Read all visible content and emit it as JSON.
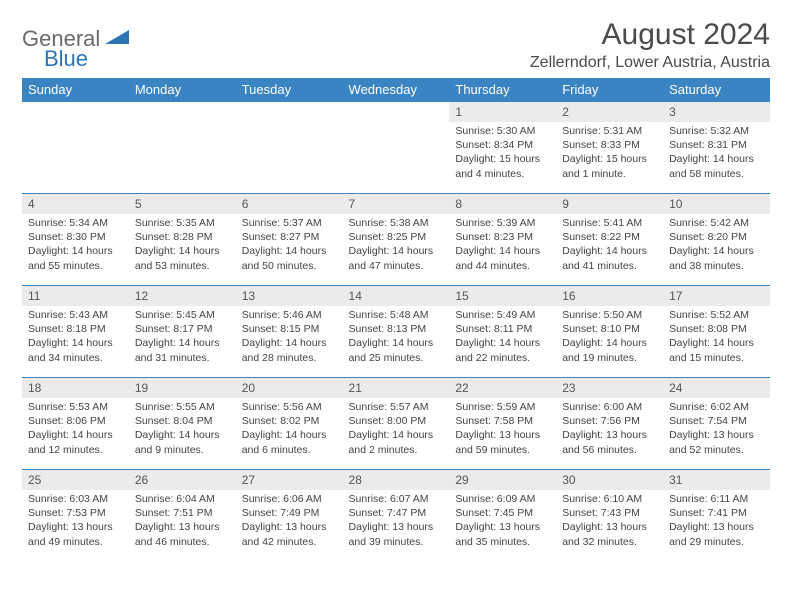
{
  "logo": {
    "general": "General",
    "blue": "Blue"
  },
  "title": "August 2024",
  "location": "Zellerndorf, Lower Austria, Austria",
  "colors": {
    "header_bg": "#3b84c4",
    "header_text": "#ffffff",
    "daynum_bg": "#ebebeb",
    "border": "#3b84c4",
    "logo_gray": "#6a6a6a",
    "logo_blue": "#2d74b5"
  },
  "weekdays": [
    "Sunday",
    "Monday",
    "Tuesday",
    "Wednesday",
    "Thursday",
    "Friday",
    "Saturday"
  ],
  "weeks": [
    [
      null,
      null,
      null,
      null,
      {
        "n": "1",
        "sunrise": "5:30 AM",
        "sunset": "8:34 PM",
        "daylight": "15 hours and 4 minutes."
      },
      {
        "n": "2",
        "sunrise": "5:31 AM",
        "sunset": "8:33 PM",
        "daylight": "15 hours and 1 minute."
      },
      {
        "n": "3",
        "sunrise": "5:32 AM",
        "sunset": "8:31 PM",
        "daylight": "14 hours and 58 minutes."
      }
    ],
    [
      {
        "n": "4",
        "sunrise": "5:34 AM",
        "sunset": "8:30 PM",
        "daylight": "14 hours and 55 minutes."
      },
      {
        "n": "5",
        "sunrise": "5:35 AM",
        "sunset": "8:28 PM",
        "daylight": "14 hours and 53 minutes."
      },
      {
        "n": "6",
        "sunrise": "5:37 AM",
        "sunset": "8:27 PM",
        "daylight": "14 hours and 50 minutes."
      },
      {
        "n": "7",
        "sunrise": "5:38 AM",
        "sunset": "8:25 PM",
        "daylight": "14 hours and 47 minutes."
      },
      {
        "n": "8",
        "sunrise": "5:39 AM",
        "sunset": "8:23 PM",
        "daylight": "14 hours and 44 minutes."
      },
      {
        "n": "9",
        "sunrise": "5:41 AM",
        "sunset": "8:22 PM",
        "daylight": "14 hours and 41 minutes."
      },
      {
        "n": "10",
        "sunrise": "5:42 AM",
        "sunset": "8:20 PM",
        "daylight": "14 hours and 38 minutes."
      }
    ],
    [
      {
        "n": "11",
        "sunrise": "5:43 AM",
        "sunset": "8:18 PM",
        "daylight": "14 hours and 34 minutes."
      },
      {
        "n": "12",
        "sunrise": "5:45 AM",
        "sunset": "8:17 PM",
        "daylight": "14 hours and 31 minutes."
      },
      {
        "n": "13",
        "sunrise": "5:46 AM",
        "sunset": "8:15 PM",
        "daylight": "14 hours and 28 minutes."
      },
      {
        "n": "14",
        "sunrise": "5:48 AM",
        "sunset": "8:13 PM",
        "daylight": "14 hours and 25 minutes."
      },
      {
        "n": "15",
        "sunrise": "5:49 AM",
        "sunset": "8:11 PM",
        "daylight": "14 hours and 22 minutes."
      },
      {
        "n": "16",
        "sunrise": "5:50 AM",
        "sunset": "8:10 PM",
        "daylight": "14 hours and 19 minutes."
      },
      {
        "n": "17",
        "sunrise": "5:52 AM",
        "sunset": "8:08 PM",
        "daylight": "14 hours and 15 minutes."
      }
    ],
    [
      {
        "n": "18",
        "sunrise": "5:53 AM",
        "sunset": "8:06 PM",
        "daylight": "14 hours and 12 minutes."
      },
      {
        "n": "19",
        "sunrise": "5:55 AM",
        "sunset": "8:04 PM",
        "daylight": "14 hours and 9 minutes."
      },
      {
        "n": "20",
        "sunrise": "5:56 AM",
        "sunset": "8:02 PM",
        "daylight": "14 hours and 6 minutes."
      },
      {
        "n": "21",
        "sunrise": "5:57 AM",
        "sunset": "8:00 PM",
        "daylight": "14 hours and 2 minutes."
      },
      {
        "n": "22",
        "sunrise": "5:59 AM",
        "sunset": "7:58 PM",
        "daylight": "13 hours and 59 minutes."
      },
      {
        "n": "23",
        "sunrise": "6:00 AM",
        "sunset": "7:56 PM",
        "daylight": "13 hours and 56 minutes."
      },
      {
        "n": "24",
        "sunrise": "6:02 AM",
        "sunset": "7:54 PM",
        "daylight": "13 hours and 52 minutes."
      }
    ],
    [
      {
        "n": "25",
        "sunrise": "6:03 AM",
        "sunset": "7:53 PM",
        "daylight": "13 hours and 49 minutes."
      },
      {
        "n": "26",
        "sunrise": "6:04 AM",
        "sunset": "7:51 PM",
        "daylight": "13 hours and 46 minutes."
      },
      {
        "n": "27",
        "sunrise": "6:06 AM",
        "sunset": "7:49 PM",
        "daylight": "13 hours and 42 minutes."
      },
      {
        "n": "28",
        "sunrise": "6:07 AM",
        "sunset": "7:47 PM",
        "daylight": "13 hours and 39 minutes."
      },
      {
        "n": "29",
        "sunrise": "6:09 AM",
        "sunset": "7:45 PM",
        "daylight": "13 hours and 35 minutes."
      },
      {
        "n": "30",
        "sunrise": "6:10 AM",
        "sunset": "7:43 PM",
        "daylight": "13 hours and 32 minutes."
      },
      {
        "n": "31",
        "sunrise": "6:11 AM",
        "sunset": "7:41 PM",
        "daylight": "13 hours and 29 minutes."
      }
    ]
  ],
  "labels": {
    "sunrise": "Sunrise: ",
    "sunset": "Sunset: ",
    "daylight": "Daylight: "
  }
}
